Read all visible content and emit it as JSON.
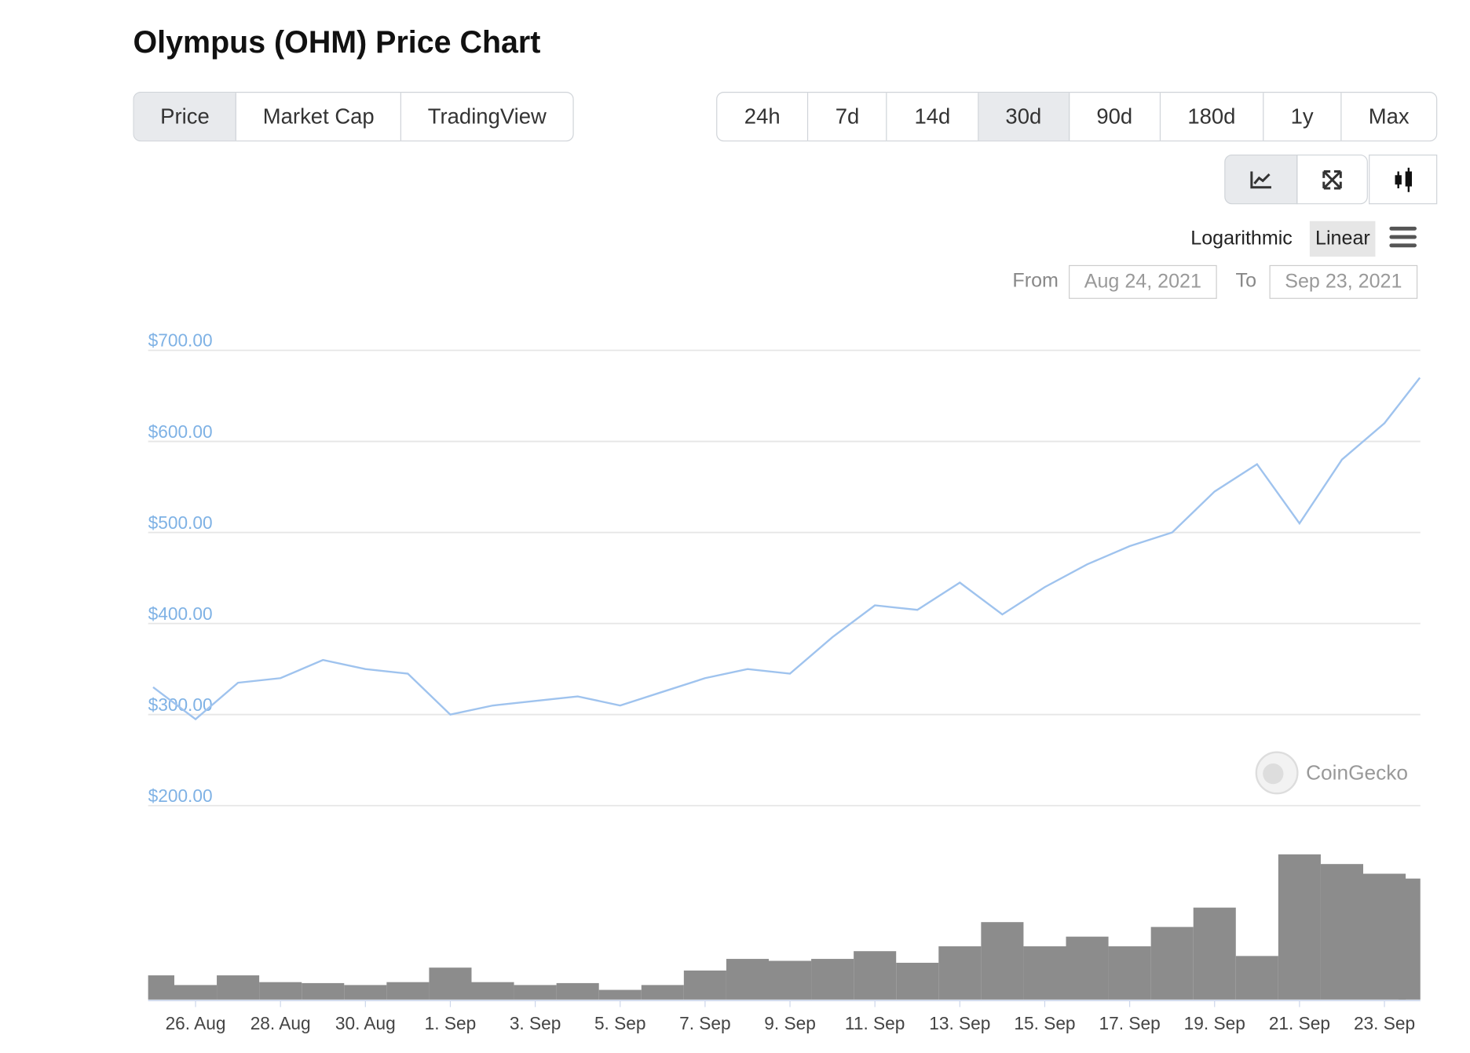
{
  "ui": {
    "title": "Olympus (OHM) Price Chart",
    "tabs": [
      "Price",
      "Market Cap",
      "TradingView"
    ],
    "active_tab": 0,
    "ranges": [
      "24h",
      "7d",
      "14d",
      "30d",
      "90d",
      "180d",
      "1y",
      "Max"
    ],
    "active_range": 3,
    "scales": [
      "Logarithmic",
      "Linear"
    ],
    "active_scale": 1,
    "from_label": "From",
    "from_date": "Aug 24, 2021",
    "to_label": "To",
    "to_date": "Sep 23, 2021",
    "watermark": "CoinGecko"
  },
  "chart_data": {
    "type": "line",
    "color": "#9fc3ee",
    "x": [
      "2021-08-25",
      "2021-08-26",
      "2021-08-27",
      "2021-08-28",
      "2021-08-29",
      "2021-08-30",
      "2021-08-31",
      "2021-09-01",
      "2021-09-02",
      "2021-09-03",
      "2021-09-04",
      "2021-09-05",
      "2021-09-06",
      "2021-09-07",
      "2021-09-08",
      "2021-09-09",
      "2021-09-10",
      "2021-09-11",
      "2021-09-12",
      "2021-09-13",
      "2021-09-14",
      "2021-09-15",
      "2021-09-16",
      "2021-09-17",
      "2021-09-18",
      "2021-09-19",
      "2021-09-20",
      "2021-09-21",
      "2021-09-22",
      "2021-09-23",
      "2021-09-23T20:00"
    ],
    "values": [
      330,
      295,
      335,
      340,
      360,
      350,
      345,
      300,
      310,
      315,
      320,
      310,
      325,
      340,
      350,
      345,
      385,
      420,
      415,
      445,
      410,
      440,
      465,
      485,
      500,
      545,
      575,
      510,
      580,
      620,
      670
    ],
    "volume": [
      25,
      15,
      25,
      18,
      17,
      15,
      18,
      33,
      18,
      15,
      17,
      10,
      15,
      30,
      42,
      40,
      42,
      50,
      38,
      55,
      80,
      55,
      65,
      55,
      75,
      95,
      45,
      150,
      140,
      130,
      125
    ],
    "volume_color": "#8c8c8c",
    "xlim": [
      "2021-08-24",
      "2021-09-24"
    ],
    "xticks": [
      {
        "value": "2021-08-26",
        "label": "26. Aug"
      },
      {
        "value": "2021-08-28",
        "label": "28. Aug"
      },
      {
        "value": "2021-08-30",
        "label": "30. Aug"
      },
      {
        "value": "2021-09-01",
        "label": "1. Sep"
      },
      {
        "value": "2021-09-03",
        "label": "3. Sep"
      },
      {
        "value": "2021-09-05",
        "label": "5. Sep"
      },
      {
        "value": "2021-09-07",
        "label": "7. Sep"
      },
      {
        "value": "2021-09-09",
        "label": "9. Sep"
      },
      {
        "value": "2021-09-11",
        "label": "11. Sep"
      },
      {
        "value": "2021-09-13",
        "label": "13. Sep"
      },
      {
        "value": "2021-09-15",
        "label": "15. Sep"
      },
      {
        "value": "2021-09-17",
        "label": "17. Sep"
      },
      {
        "value": "2021-09-19",
        "label": "19. Sep"
      },
      {
        "value": "2021-09-21",
        "label": "21. Sep"
      },
      {
        "value": "2021-09-23",
        "label": "23. Sep"
      }
    ],
    "ylim": [
      200,
      700
    ],
    "yticks": [
      {
        "value": 200,
        "label": "$200.00"
      },
      {
        "value": 300,
        "label": "$300.00"
      },
      {
        "value": 400,
        "label": "$400.00"
      },
      {
        "value": 500,
        "label": "$500.00"
      },
      {
        "value": 600,
        "label": "$600.00"
      },
      {
        "value": 700,
        "label": "$700.00"
      }
    ],
    "grid": true
  }
}
